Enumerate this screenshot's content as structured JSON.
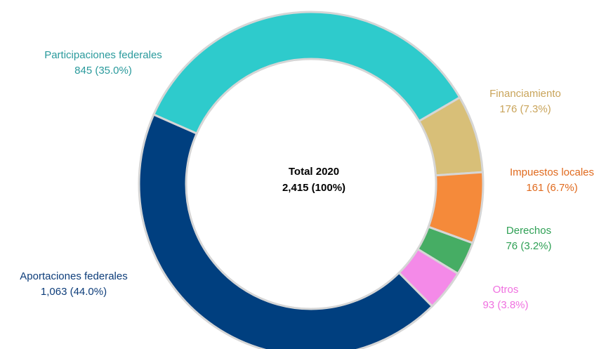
{
  "chart_data": {
    "type": "pie",
    "style": "donut",
    "center_label": {
      "line1": "Total 2020",
      "line2": "2,415 (100%)"
    },
    "slices": [
      {
        "name": "Participaciones federales",
        "value": 845,
        "value_label": "845 (35.0%)",
        "color": "#2ecbcc"
      },
      {
        "name": "Financiamiento",
        "value": 176,
        "value_label": "176 (7.3%)",
        "color": "#d8bf78"
      },
      {
        "name": "Impuestos locales",
        "value": 161,
        "value_label": "161 (6.7%)",
        "color": "#f58a3a"
      },
      {
        "name": "Derechos",
        "value": 76,
        "value_label": "76 (3.2%)",
        "color": "#46ad64"
      },
      {
        "name": "Otros",
        "value": 93,
        "value_label": "93 (3.8%)",
        "color": "#f48ae8"
      },
      {
        "name": "Aportaciones federales",
        "value": 1063,
        "value_label": "1,063 (44.0%)",
        "color": "#003f7f"
      }
    ],
    "label_colors": {
      "Participaciones federales": "#2a9a9c",
      "Financiamiento": "#c9a45a",
      "Impuestos locales": "#e06a1e",
      "Derechos": "#2fa055",
      "Otros": "#f070e0",
      "Aportaciones federales": "#0d3d7a"
    },
    "separator_color": "#d6d6d6"
  }
}
